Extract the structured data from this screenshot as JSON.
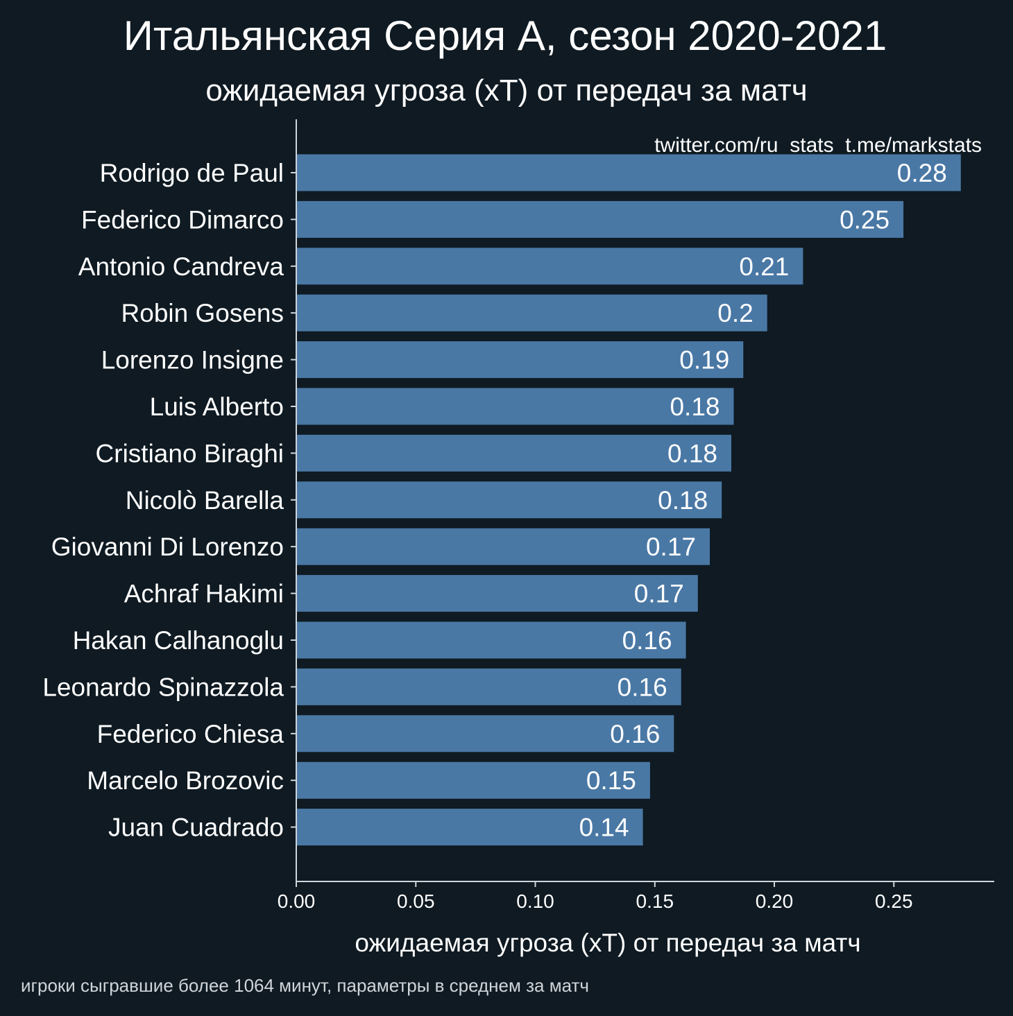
{
  "chart_data": {
    "type": "bar",
    "orientation": "horizontal",
    "title": "Итальянская Серия А, сезон 2020-2021",
    "subtitle": "ожидаемая угроза (xT) от передач за матч",
    "xlabel": "ожидаемая угроза (xT) от передач за матч",
    "ylabel": "",
    "watermark": "twitter.com/ru_stats  t.me/markstats",
    "footnote": "игроки сыгравшие более 1064 минут, параметры в среднем за матч",
    "xlim": [
      0,
      0.292
    ],
    "xticks": [
      0,
      0.05,
      0.1,
      0.15,
      0.2,
      0.25
    ],
    "xtick_labels": [
      "0.00",
      "0.05",
      "0.10",
      "0.15",
      "0.20",
      "0.25"
    ],
    "grid": false,
    "categories": [
      "Rodrigo de Paul",
      "Federico Dimarco",
      "Antonio Candreva",
      "Robin Gosens",
      "Lorenzo Insigne",
      "Luis Alberto",
      "Cristiano Biraghi",
      "Nicolò Barella",
      "Giovanni Di Lorenzo",
      "Achraf Hakimi",
      "Hakan Calhanoglu",
      "Leonardo Spinazzola",
      "Federico Chiesa",
      "Marcelo Brozovic",
      "Juan Cuadrado"
    ],
    "values": [
      0.278,
      0.254,
      0.212,
      0.197,
      0.187,
      0.183,
      0.182,
      0.178,
      0.173,
      0.168,
      0.163,
      0.161,
      0.158,
      0.148,
      0.145
    ],
    "data_labels": [
      "0.28",
      "0.25",
      "0.21",
      "0.2",
      "0.19",
      "0.18",
      "0.18",
      "0.18",
      "0.17",
      "0.17",
      "0.16",
      "0.16",
      "0.16",
      "0.15",
      "0.14"
    ]
  },
  "colors": {
    "background": "#0f1a22",
    "bar": "#4a78a5",
    "text": "#ffffff",
    "axis": "#cfd6dc",
    "footnote": "#d0d5da"
  }
}
